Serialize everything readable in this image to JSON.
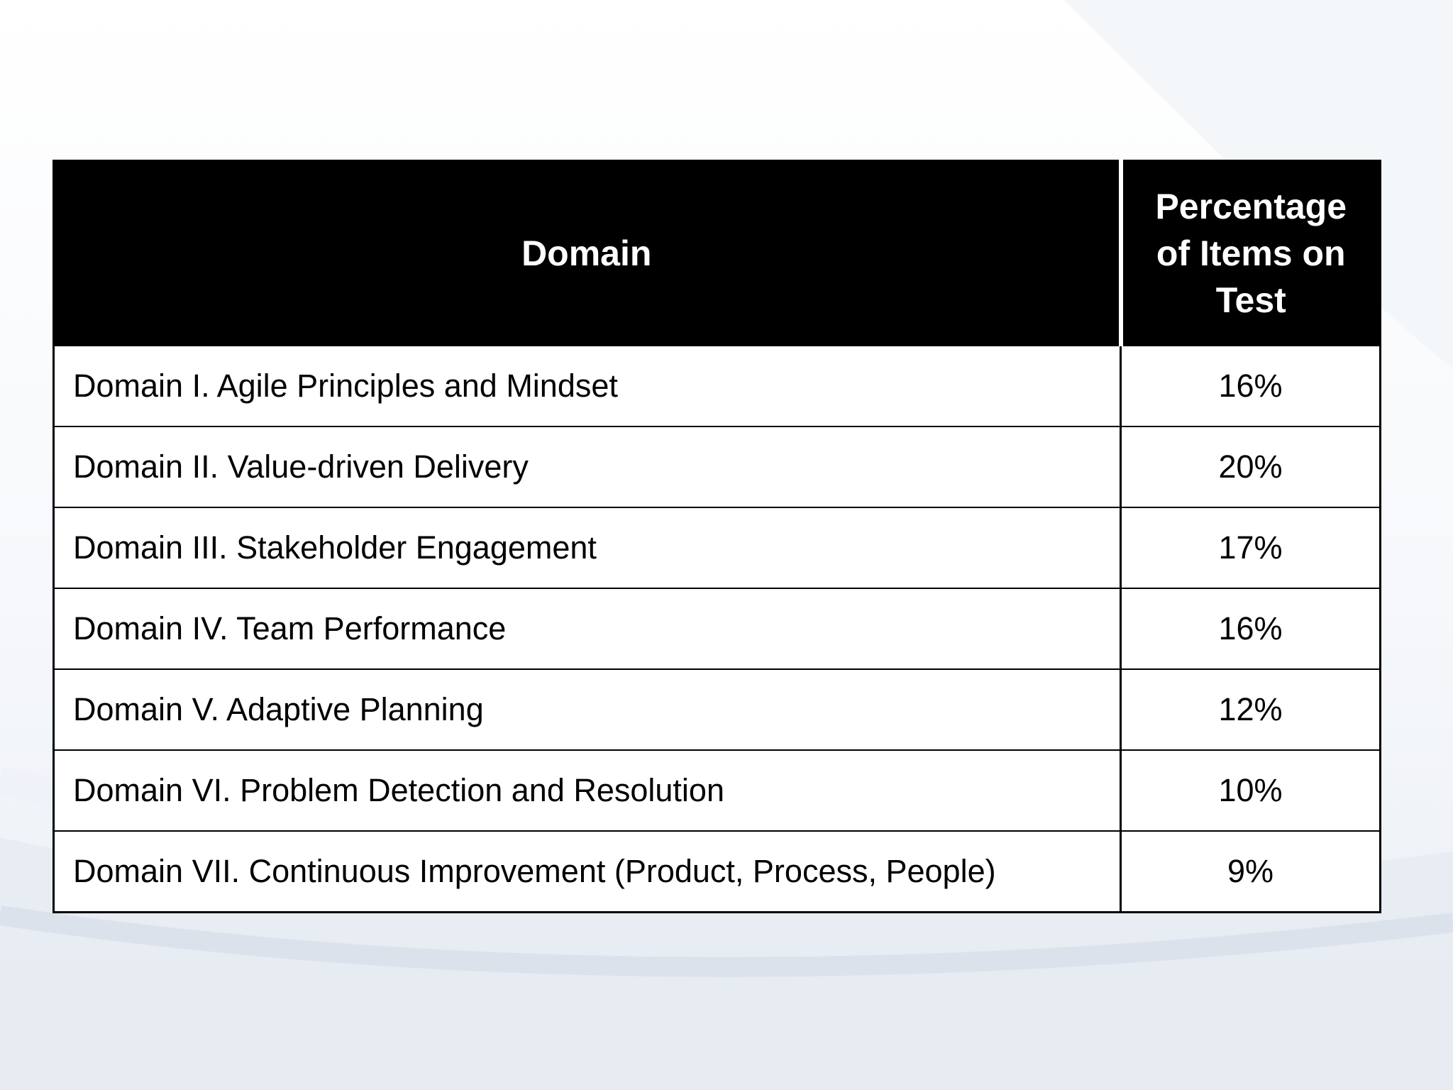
{
  "table": {
    "headers": {
      "domain": "Domain",
      "percentage": [
        "Percentage",
        "of Items on",
        "Test"
      ]
    },
    "rows": [
      {
        "domain": "Domain I. Agile Principles and Mindset",
        "percentage": "16%"
      },
      {
        "domain": "Domain II. Value-driven Delivery",
        "percentage": "20%"
      },
      {
        "domain": "Domain III. Stakeholder Engagement",
        "percentage": "17%"
      },
      {
        "domain": "Domain IV. Team Performance",
        "percentage": "16%"
      },
      {
        "domain": "Domain V. Adaptive Planning",
        "percentage": "12%"
      },
      {
        "domain": "Domain VI. Problem Detection and Resolution",
        "percentage": "10%"
      },
      {
        "domain": "Domain VII. Continuous Improvement (Product, Process, People)",
        "percentage": "9%"
      }
    ]
  },
  "colors": {
    "header_bg": "#000000",
    "header_text": "#ffffff",
    "body_text": "#000000"
  }
}
